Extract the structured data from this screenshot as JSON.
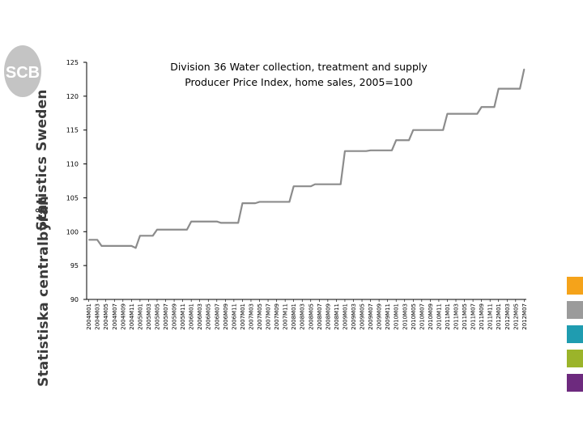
{
  "branding": {
    "logo_text": "SCB",
    "side_line1": "Statistiska centralbyrån",
    "side_line2": "Statistics Sweden",
    "swatch_colors": [
      "#f5a31a",
      "#9b9b9b",
      "#1f9cb0",
      "#9bb42a",
      "#6d2a7e"
    ]
  },
  "chart_data": {
    "type": "line",
    "title_line1": "Division 36 Water collection, treatment and supply",
    "title_line2": "Producer Price Index, home sales, 2005=100",
    "xlabel": "",
    "ylabel": "",
    "ylim": [
      90,
      125
    ],
    "yticks": [
      90,
      95,
      100,
      105,
      110,
      115,
      120,
      125
    ],
    "grid": false,
    "legend": "none",
    "line_color": "#8c8c8c",
    "tick_labels": [
      "2004M01",
      "2004M03",
      "2004M05",
      "2004M07",
      "2004M09",
      "2004M11",
      "2005M01",
      "2005M03",
      "2005M05",
      "2005M07",
      "2005M09",
      "2005M11",
      "2006M01",
      "2006M03",
      "2006M05",
      "2006M07",
      "2006M09",
      "2006M11",
      "2007M01",
      "2007M03",
      "2007M05",
      "2007M07",
      "2007M09",
      "2007M11",
      "2008M01",
      "2008M03",
      "2008M05",
      "2008M07",
      "2008M09",
      "2008M11",
      "2009M01",
      "2009M03",
      "2009M05",
      "2009M07",
      "2009M09",
      "2009M11",
      "2010M01",
      "2010M03",
      "2010M05",
      "2010M07",
      "2010M09",
      "2010M11",
      "2011M01",
      "2011M03",
      "2011M05",
      "2011M07",
      "2011M09",
      "2011M11",
      "2012M01",
      "2012M03",
      "2012M05",
      "2012M07"
    ],
    "series": [
      {
        "x": [
          "2004M01",
          "2004M02",
          "2004M03",
          "2004M04",
          "2004M05",
          "2004M06",
          "2004M07",
          "2004M08",
          "2004M09",
          "2004M10",
          "2004M11",
          "2004M12",
          "2005M01",
          "2005M02",
          "2005M03",
          "2005M04",
          "2005M05",
          "2005M06",
          "2005M07",
          "2005M08",
          "2005M09",
          "2005M10",
          "2005M11",
          "2005M12",
          "2006M01",
          "2006M02",
          "2006M03",
          "2006M04",
          "2006M05",
          "2006M06",
          "2006M07",
          "2006M08",
          "2006M09",
          "2006M10",
          "2006M11",
          "2006M12",
          "2007M01",
          "2007M02",
          "2007M03",
          "2007M04",
          "2007M05",
          "2007M06",
          "2007M07",
          "2007M08",
          "2007M09",
          "2007M10",
          "2007M11",
          "2007M12",
          "2008M01",
          "2008M02",
          "2008M03",
          "2008M04",
          "2008M05",
          "2008M06",
          "2008M07",
          "2008M08",
          "2008M09",
          "2008M10",
          "2008M11",
          "2008M12",
          "2009M01",
          "2009M02",
          "2009M03",
          "2009M04",
          "2009M05",
          "2009M06",
          "2009M07",
          "2009M08",
          "2009M09",
          "2009M10",
          "2009M11",
          "2009M12",
          "2010M01",
          "2010M02",
          "2010M03",
          "2010M04",
          "2010M05",
          "2010M06",
          "2010M07",
          "2010M08",
          "2010M09",
          "2010M10",
          "2010M11",
          "2010M12",
          "2011M01",
          "2011M02",
          "2011M03",
          "2011M04",
          "2011M05",
          "2011M06",
          "2011M07",
          "2011M08",
          "2011M09",
          "2011M10",
          "2011M11",
          "2011M12",
          "2012M01",
          "2012M02",
          "2012M03",
          "2012M04",
          "2012M05",
          "2012M06",
          "2012M07"
        ],
        "values": [
          98.8,
          98.8,
          98.8,
          97.9,
          97.9,
          97.9,
          97.9,
          97.9,
          97.9,
          97.9,
          97.9,
          97.6,
          99.4,
          99.4,
          99.4,
          99.4,
          100.3,
          100.3,
          100.3,
          100.3,
          100.3,
          100.3,
          100.3,
          100.3,
          101.5,
          101.5,
          101.5,
          101.5,
          101.5,
          101.5,
          101.5,
          101.3,
          101.3,
          101.3,
          101.3,
          101.3,
          104.2,
          104.2,
          104.2,
          104.2,
          104.4,
          104.4,
          104.4,
          104.4,
          104.4,
          104.4,
          104.4,
          104.4,
          106.7,
          106.7,
          106.7,
          106.7,
          106.7,
          107.0,
          107.0,
          107.0,
          107.0,
          107.0,
          107.0,
          107.0,
          111.9,
          111.9,
          111.9,
          111.9,
          111.9,
          111.9,
          112.0,
          112.0,
          112.0,
          112.0,
          112.0,
          112.0,
          113.5,
          113.5,
          113.5,
          113.5,
          115.0,
          115.0,
          115.0,
          115.0,
          115.0,
          115.0,
          115.0,
          115.0,
          117.4,
          117.4,
          117.4,
          117.4,
          117.4,
          117.4,
          117.4,
          117.4,
          118.4,
          118.4,
          118.4,
          118.4,
          121.1,
          121.1,
          121.1,
          121.1,
          121.1,
          121.1,
          124.0
        ]
      }
    ]
  }
}
